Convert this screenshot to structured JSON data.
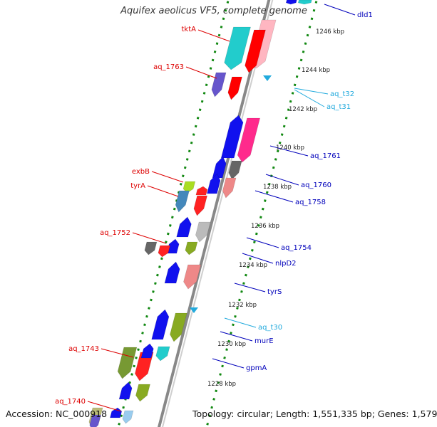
{
  "title": "Aquifex aeolicus VF5, complete genome",
  "footer": {
    "accession_label": "Accession:",
    "accession": "NC_000918",
    "topology_label": "Topology:",
    "topology": "circular",
    "length_label": "Length:",
    "length": "1,551,335 bp",
    "genes_label": "Genes:",
    "genes": "1,579"
  },
  "colors": {
    "left_label": "#dd0000",
    "right_label": "#0000bb",
    "rna_label": "#22aadd",
    "backbone": "#888888",
    "ruler_dots": "#118811"
  },
  "ruler_ticks": [
    "1246 kbp",
    "1244 kbp",
    "1242 kbp",
    "1240 kbp",
    "1238 kbp",
    "1236 kbp",
    "1234 kbp",
    "1232 kbp",
    "1230 kbp",
    "1228 kbp"
  ],
  "left_labels": [
    "tktA",
    "aq_1763",
    "exbB",
    "tyrA",
    "aq_1752",
    "aq_1743",
    "aq_1740"
  ],
  "right_labels": [
    "dld1",
    "aq_1761",
    "aq_1760",
    "aq_1758",
    "aq_1754",
    "nlpD2",
    "tyrS",
    "murE",
    "gpmA"
  ],
  "rna_labels": [
    "aq_t32",
    "aq_t31",
    "aq_t30"
  ]
}
